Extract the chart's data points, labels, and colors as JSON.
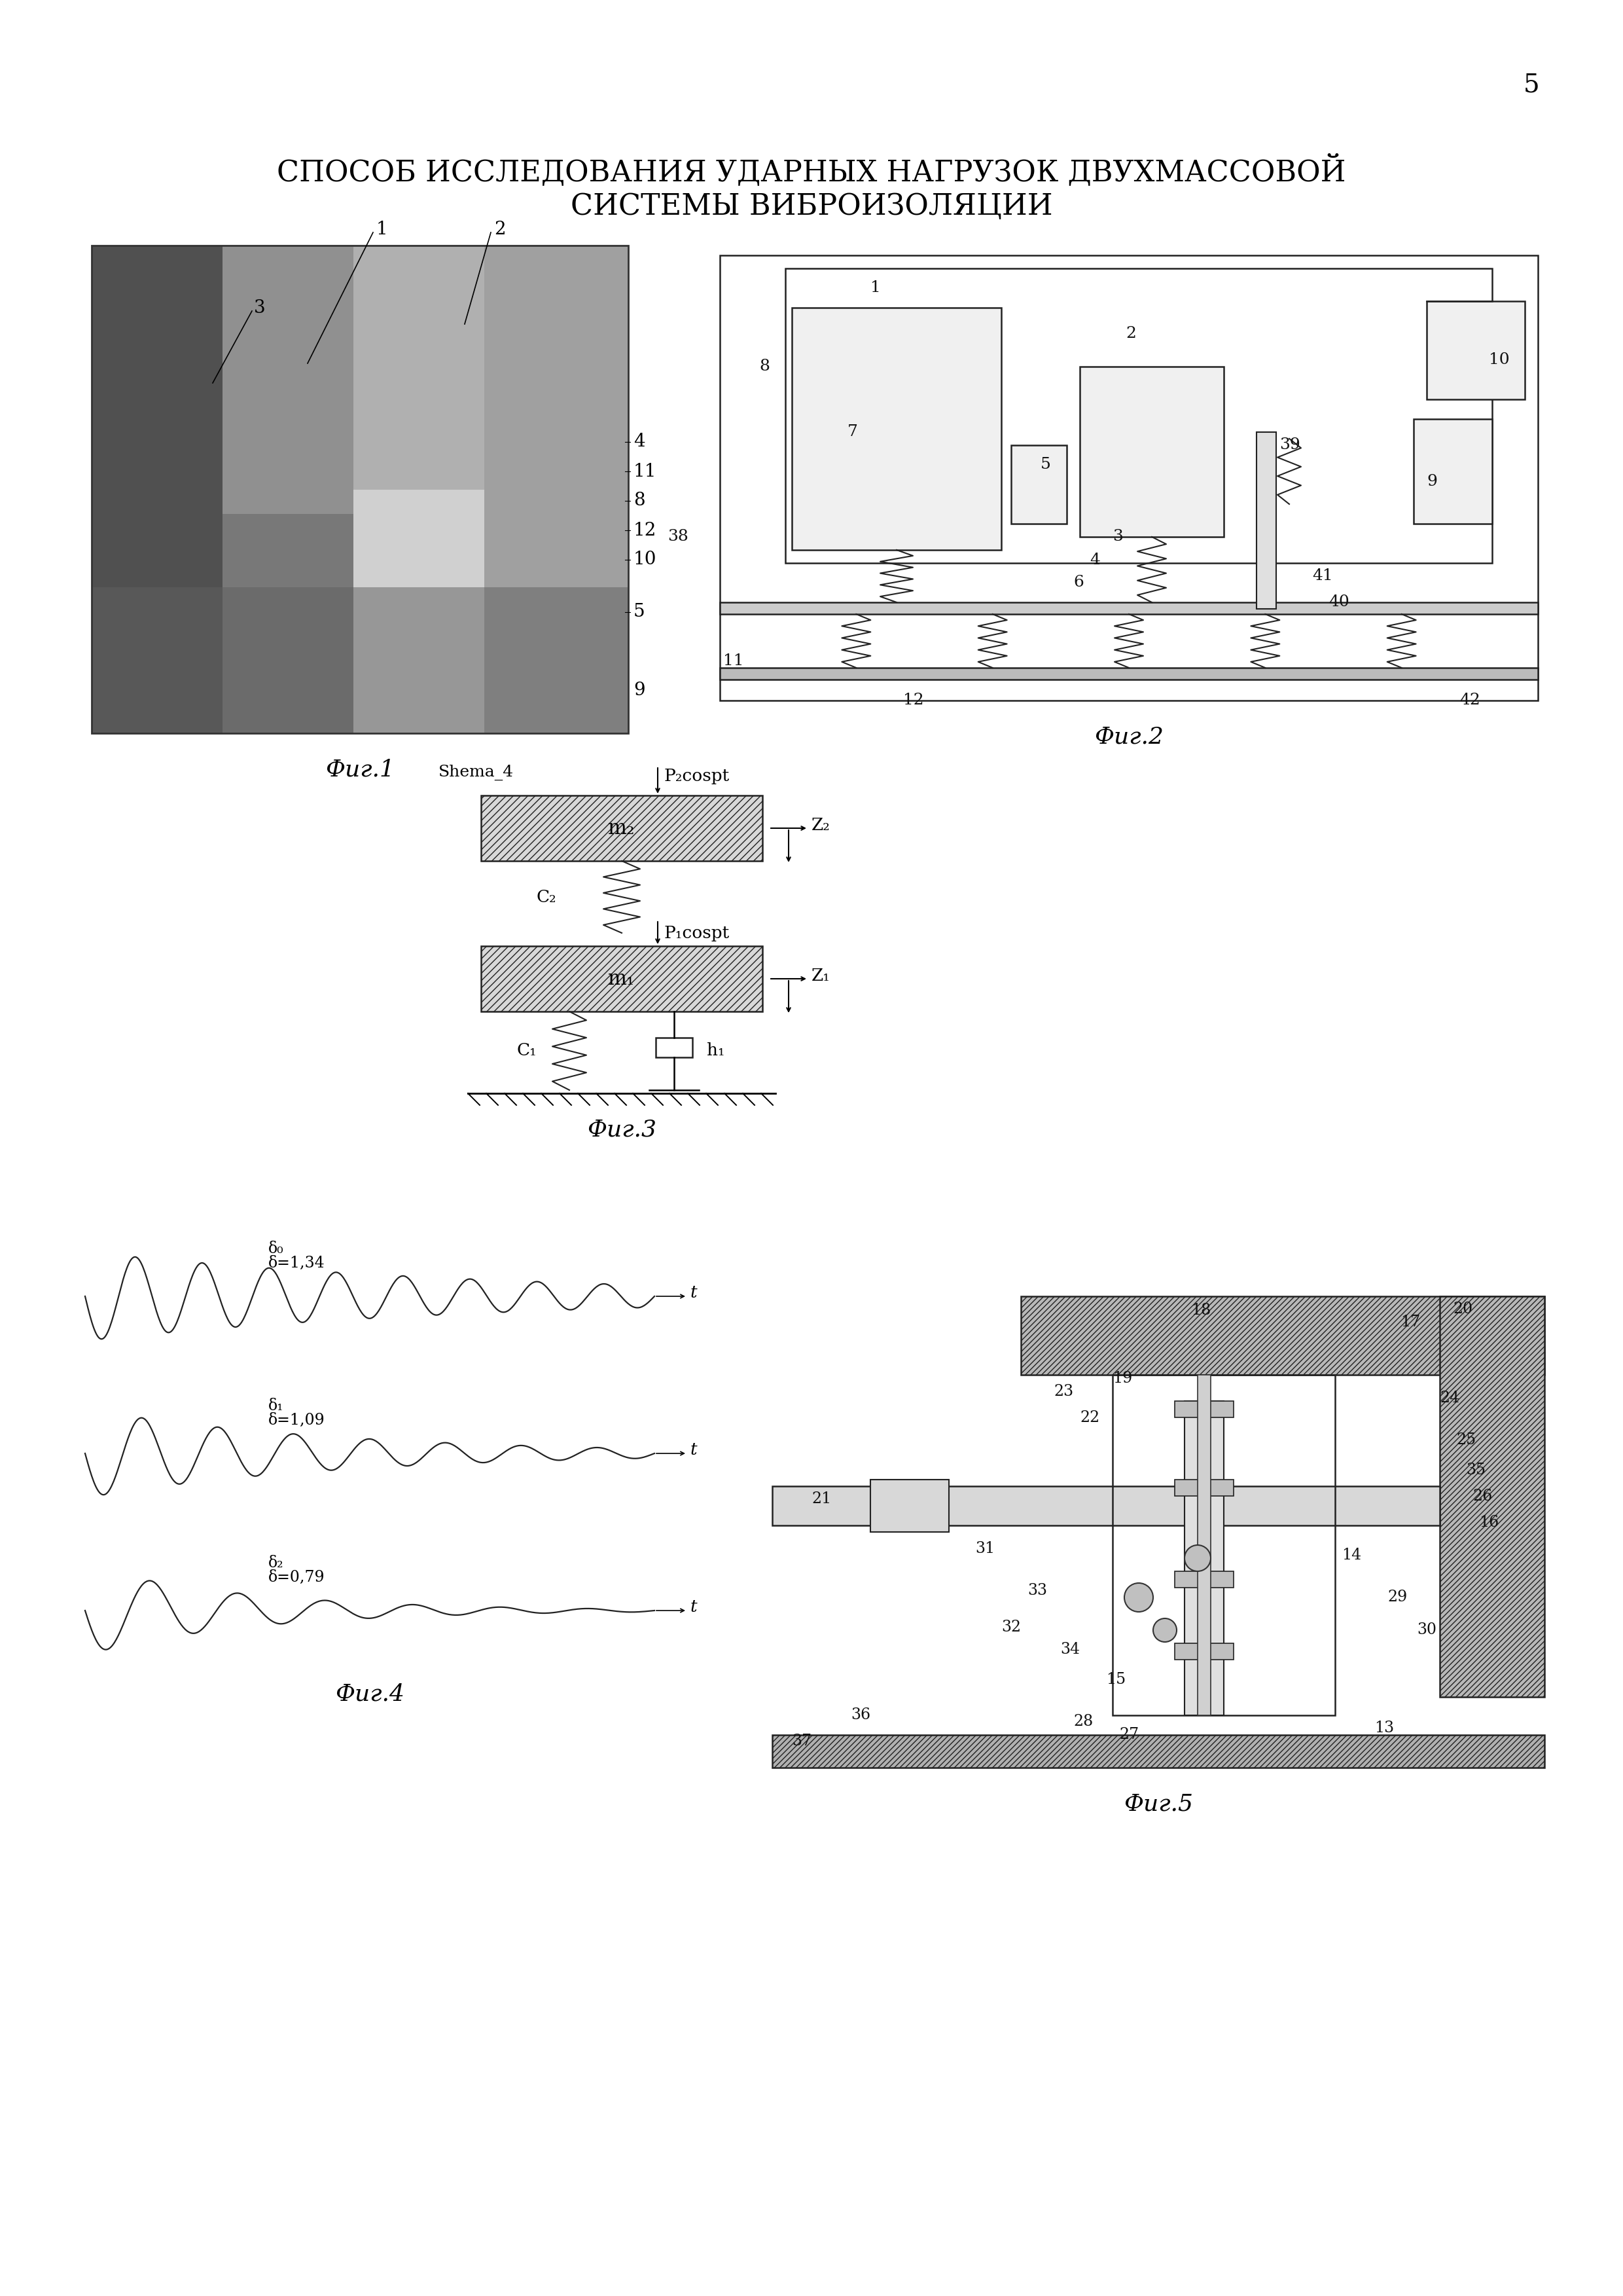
{
  "page_number": "5",
  "title_line1": "СПОСОБ ИССЛЕДОВАНИЯ УДАРНЫХ НАГРУЗОК ДВУХМАССОВОЙ",
  "title_line2": "СИСТЕМЫ ВИБРОИЗОЛЯЦИИ",
  "fig1_label": "Фиг.1",
  "fig2_label": "Фиг.2",
  "fig3_label": "Фиг.3",
  "fig4_label": "Фиг.4",
  "fig5_label": "Фиг.5",
  "background_color": "#ffffff",
  "text_color": "#000000",
  "fig3_schema_label": "Shema_4",
  "fig3_m2_label": "m₂",
  "fig3_m1_label": "m₁",
  "fig3_c2_label": "C₂",
  "fig3_c1_label": "C₁",
  "fig3_h1_label": "h₁",
  "fig3_p2_label": "P₂cospt",
  "fig3_p1_label": "P₁cospt",
  "fig3_z2_label": "Z₂",
  "fig3_z1_label": "Z₁"
}
